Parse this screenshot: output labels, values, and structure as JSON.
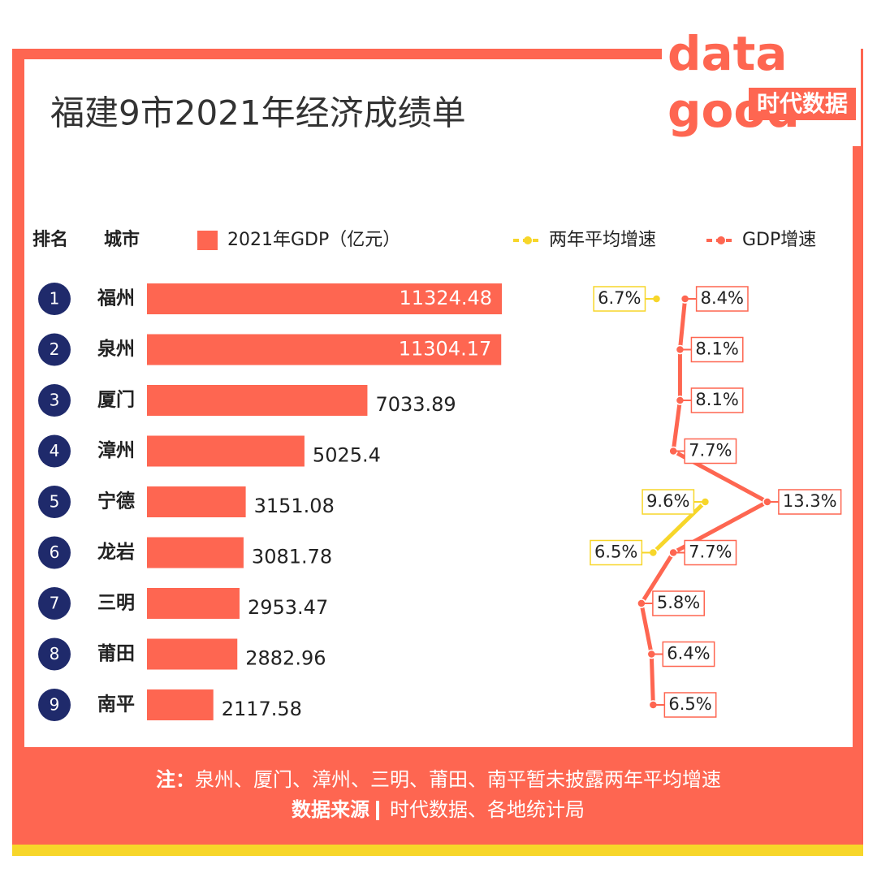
{
  "chart_data": {
    "type": "bar",
    "title": "福建9市2021年经济成绩单",
    "logo_letters": [
      "data",
      "good"
    ],
    "logo_text": "时代数据",
    "rank_header": "排名",
    "city_header": "城市",
    "ranks": [
      "1",
      "2",
      "3",
      "4",
      "5",
      "6",
      "7",
      "8",
      "9"
    ],
    "categories": [
      "福州",
      "泉州",
      "厦门",
      "漳州",
      "宁德",
      "龙岩",
      "三明",
      "莆田",
      "南平"
    ],
    "series": [
      {
        "name": "2021年GDP（亿元）",
        "color": "#fe6651",
        "values": [
          11324.48,
          11304.17,
          7033.89,
          5025.4,
          3151.08,
          3081.78,
          2953.47,
          2882.96,
          2117.58
        ]
      },
      {
        "name": "两年平均增速",
        "type": "line",
        "color": "#f7d62a",
        "values": [
          6.7,
          null,
          null,
          null,
          9.6,
          6.5,
          null,
          null,
          null
        ],
        "value_labels": [
          "6.7%",
          null,
          null,
          null,
          "9.6%",
          "6.5%",
          null,
          null,
          null
        ]
      },
      {
        "name": "GDP增速",
        "type": "line",
        "color": "#fe6651",
        "values": [
          8.4,
          8.1,
          8.1,
          7.7,
          13.3,
          7.7,
          5.8,
          6.4,
          6.5
        ],
        "value_labels": [
          "8.4%",
          "8.1%",
          "8.1%",
          "7.7%",
          "13.3%",
          "7.7%",
          "5.8%",
          "6.4%",
          "6.5%"
        ]
      }
    ],
    "note_label": "注：",
    "note": "泉州、厦门、漳州、三明、莆田、南平暂未披露两年平均增速",
    "source_label": "数据来源",
    "source": "时代数据、各地统计局"
  }
}
